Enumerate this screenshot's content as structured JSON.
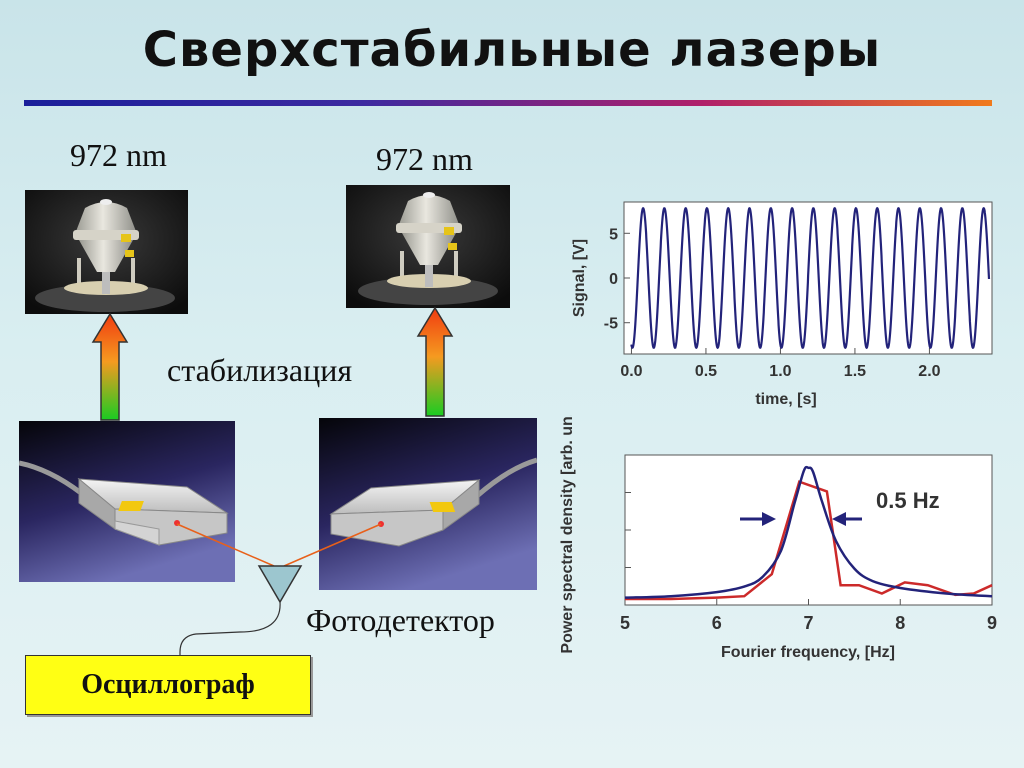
{
  "slide": {
    "title": "Сверхстабильные лазеры",
    "labels": {
      "wavelength_left": "972 nm",
      "wavelength_right": "972 nm",
      "stabilization": "стабилизация",
      "photodetector": "Фотодетектор",
      "oscilloscope": "Осциллограф"
    },
    "colors": {
      "oscilloscope_box": "#ffff14",
      "arrow_top": "#f04a10",
      "arrow_bottom": "#22cc22",
      "beam": "#e8601a"
    }
  },
  "chart_data": [
    {
      "type": "line",
      "xlabel": "time, [s]",
      "ylabel": "Signal, [V]",
      "xlim": [
        -0.05,
        2.42
      ],
      "ylim": [
        -8.5,
        8.5
      ],
      "x_ticks": [
        "0.0",
        "0.5",
        "1.0",
        "1.5",
        "2.0"
      ],
      "y_ticks": [
        "5",
        "0",
        "-5"
      ],
      "series": [
        {
          "waveform": "sine",
          "amplitude": 7.8,
          "frequency_hz": 7.0,
          "x_range": [
            0.0,
            2.4
          ],
          "color": "#23237a"
        }
      ]
    },
    {
      "type": "line",
      "xlabel": "Fourier frequency, [Hz]",
      "ylabel": "Power spectral density [arb. un.]",
      "xlim": [
        5,
        9
      ],
      "ylim": [
        0,
        1.0
      ],
      "x_ticks": [
        "5",
        "6",
        "7",
        "8",
        "9"
      ],
      "annotation": "0.5 Hz",
      "series": [
        {
          "color": "#cc2a2a",
          "x": [
            5.0,
            5.5,
            6.0,
            6.3,
            6.6,
            6.9,
            7.2,
            7.35,
            7.55,
            7.8,
            8.05,
            8.3,
            8.6,
            8.8,
            9.0
          ],
          "y": [
            0.0,
            0.0,
            0.01,
            0.02,
            0.18,
            0.85,
            0.78,
            0.1,
            0.1,
            0.04,
            0.12,
            0.1,
            0.03,
            0.04,
            0.1
          ]
        },
        {
          "color": "#23237a",
          "x": [
            5.0,
            5.5,
            6.0,
            6.3,
            6.5,
            6.7,
            6.85,
            6.95,
            7.0,
            7.05,
            7.15,
            7.3,
            7.5,
            7.7,
            8.0,
            8.5,
            9.0
          ],
          "y": [
            0.01,
            0.02,
            0.05,
            0.09,
            0.16,
            0.35,
            0.7,
            0.93,
            0.95,
            0.92,
            0.7,
            0.42,
            0.22,
            0.13,
            0.08,
            0.04,
            0.02
          ]
        }
      ]
    }
  ]
}
